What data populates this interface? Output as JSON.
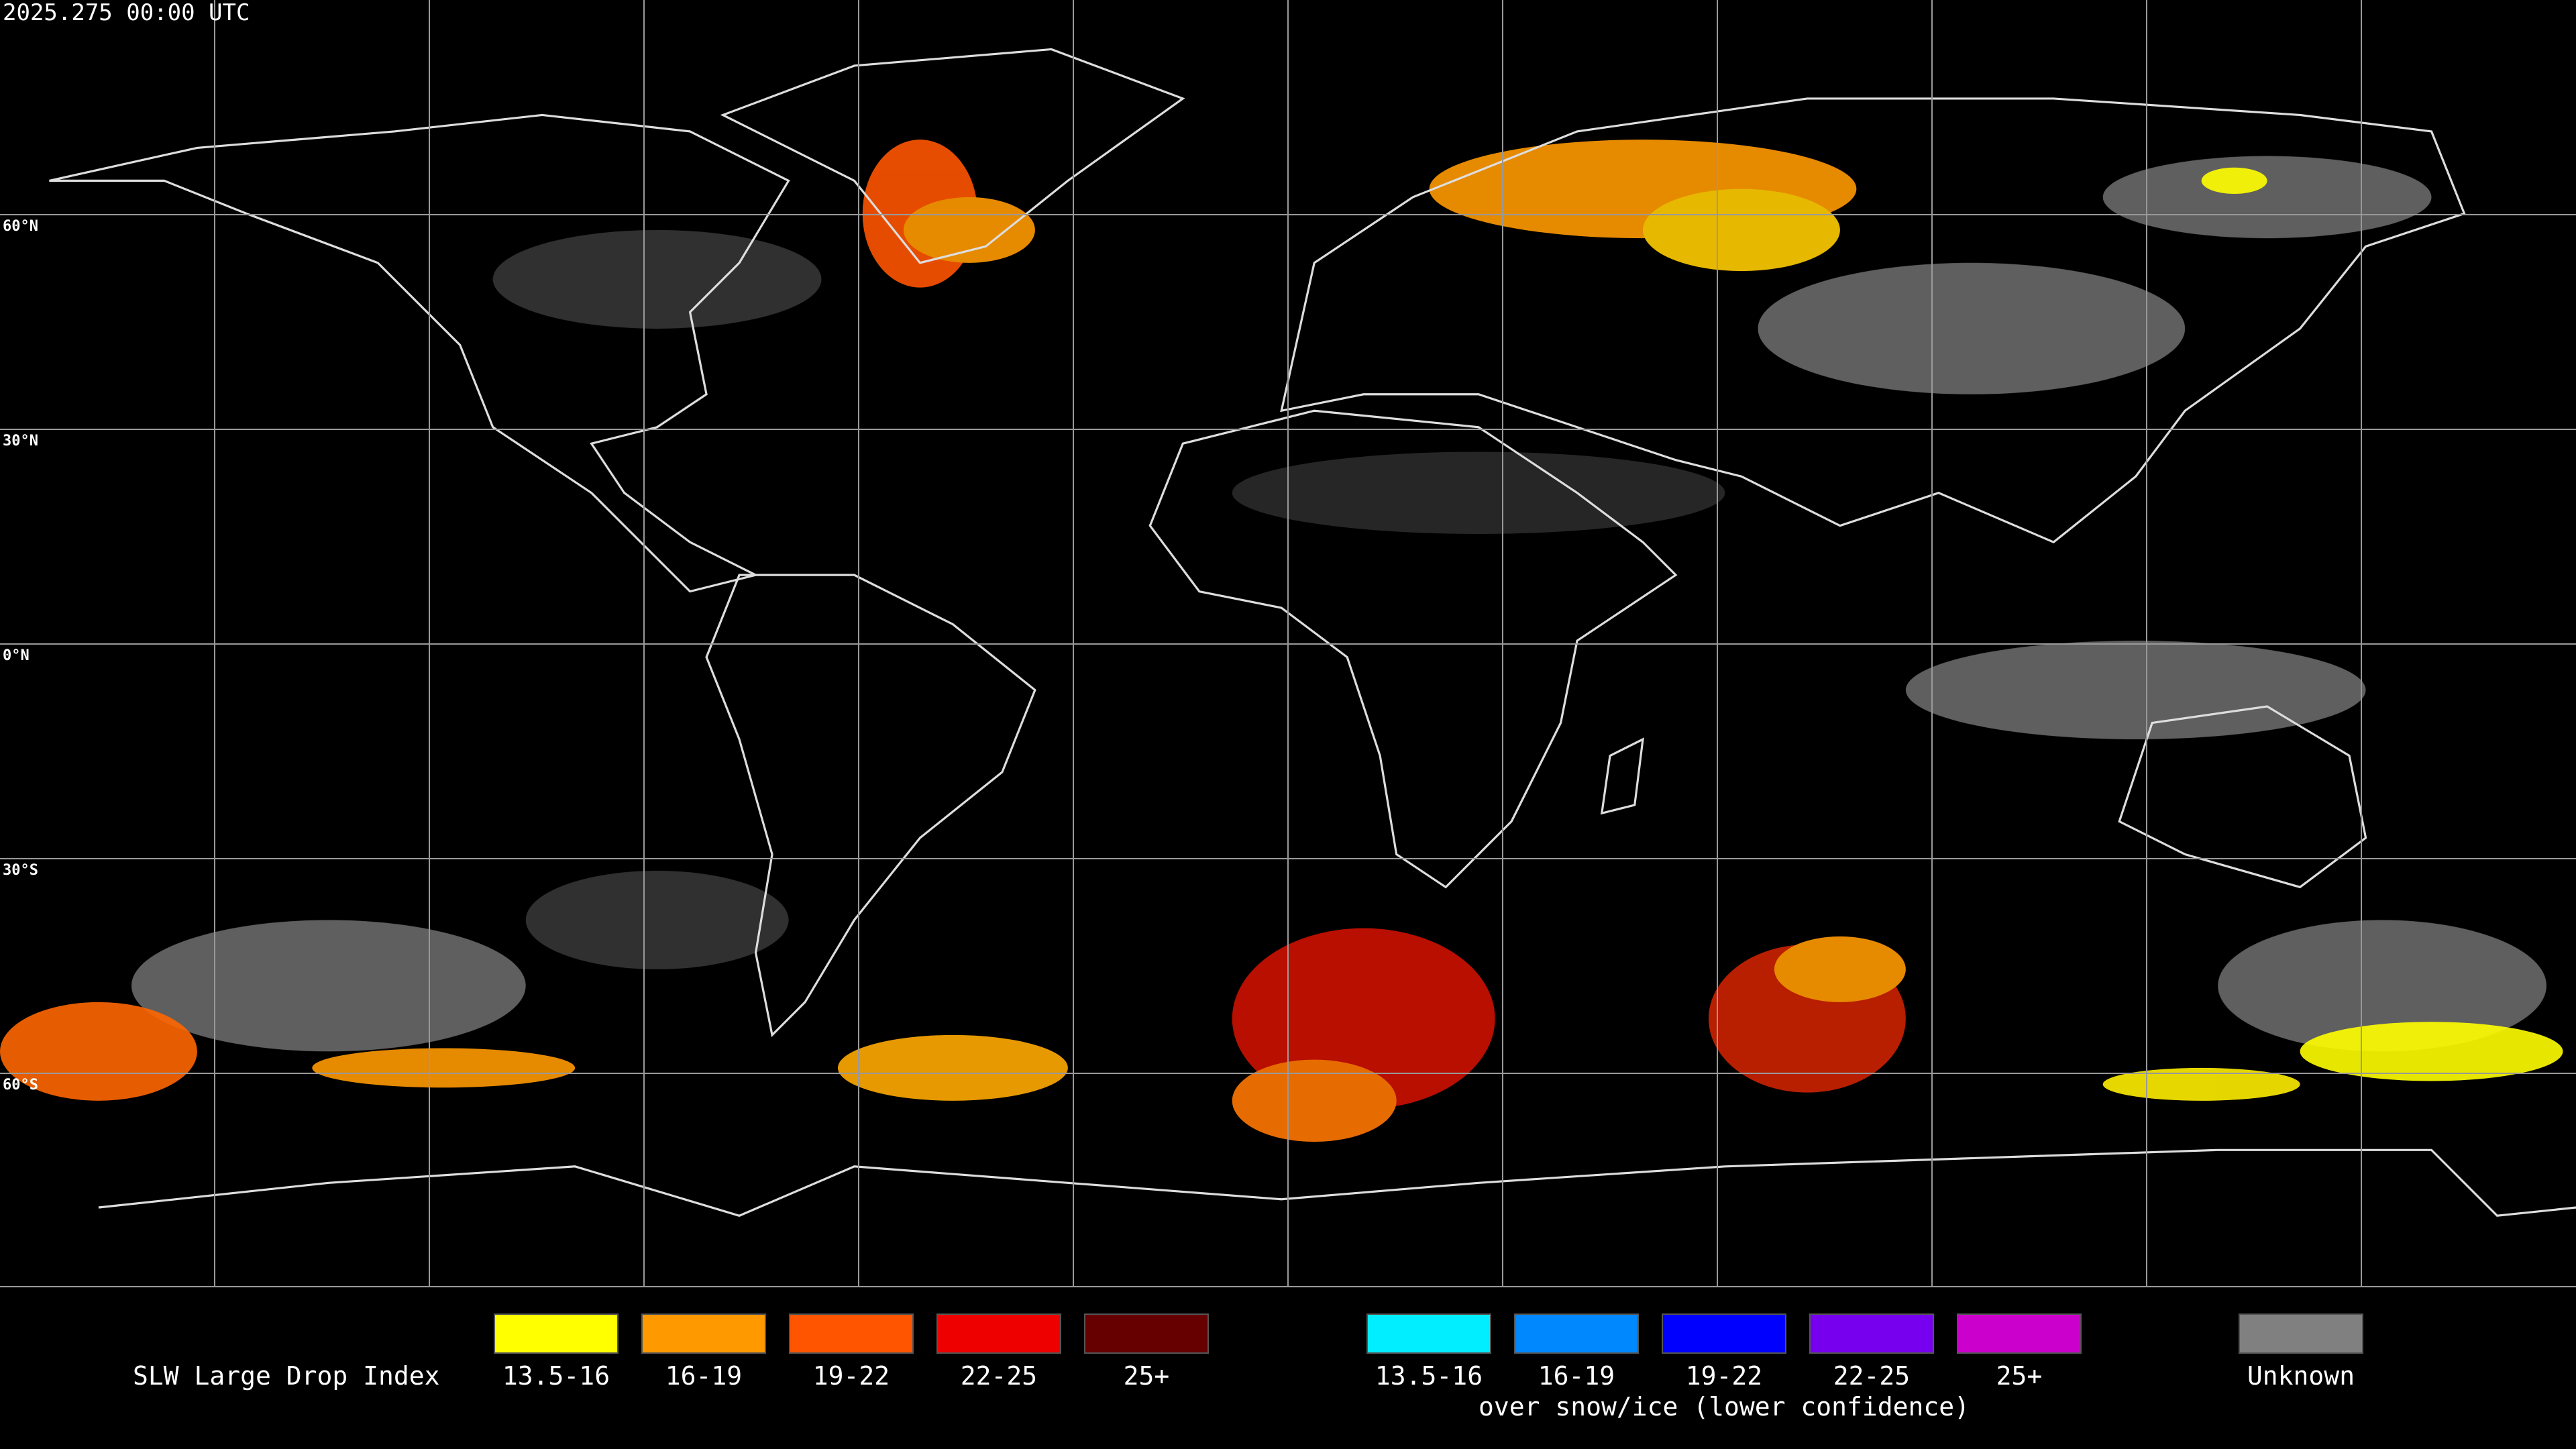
{
  "header": {
    "timestamp": "2025.275 00:00 UTC"
  },
  "map": {
    "latitude_labels": [
      "60°N",
      "30°N",
      "0°N",
      "30°S",
      "60°S"
    ]
  },
  "legend": {
    "title": "SLW Large Drop Index",
    "groups": [
      {
        "items": [
          {
            "label": "13.5-16",
            "color": "#ffff00"
          },
          {
            "label": "16-19",
            "color": "#ff9900"
          },
          {
            "label": "19-22",
            "color": "#ff5500"
          },
          {
            "label": "22-25",
            "color": "#ee0000"
          },
          {
            "label": "25+",
            "color": "#660000"
          }
        ]
      },
      {
        "items": [
          {
            "label": "13.5-16",
            "color": "#00eeff"
          },
          {
            "label": "16-19",
            "color": "#0088ff"
          },
          {
            "label": "19-22",
            "color": "#0000ff"
          },
          {
            "label": "22-25",
            "color": "#7700ee"
          },
          {
            "label": "25+",
            "color": "#cc00cc"
          }
        ],
        "subtitle": "over snow/ice (lower confidence)"
      },
      {
        "items": [
          {
            "label": "Unknown",
            "color": "#808080"
          }
        ]
      }
    ]
  }
}
